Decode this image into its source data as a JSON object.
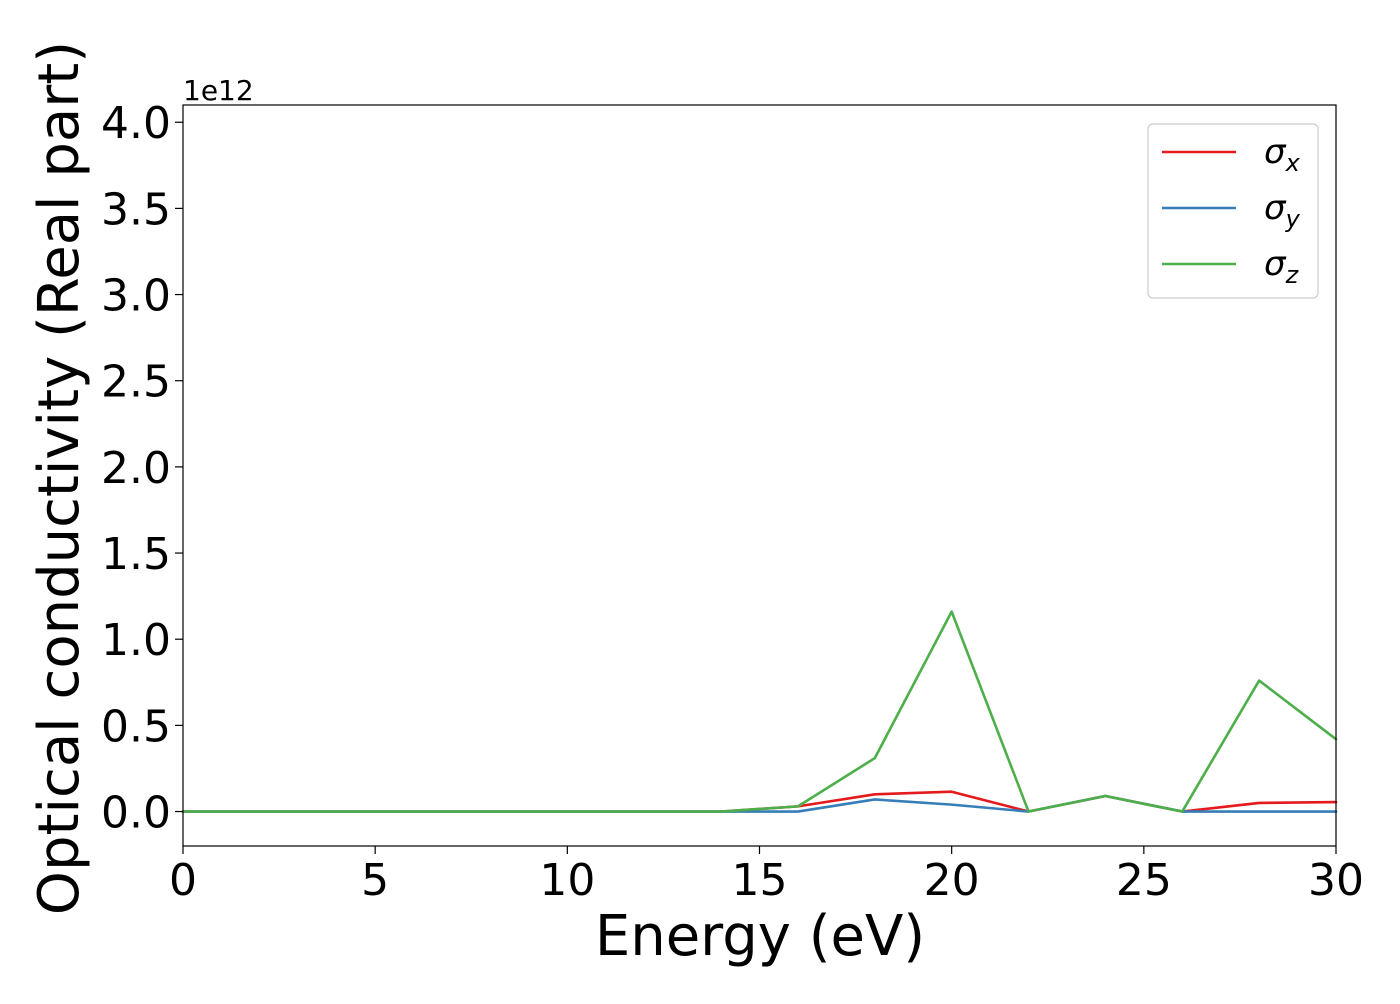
{
  "chart_data": {
    "type": "line",
    "xlabel": "Energy (eV)",
    "ylabel": "Optical conductivity (Real part)",
    "y_multiplier_label": "1e12",
    "xlim": [
      0,
      30
    ],
    "ylim": [
      -0.2,
      4.1
    ],
    "y_units_scale": 1000000000000.0,
    "xticks": [
      0,
      5,
      10,
      15,
      20,
      25,
      30
    ],
    "xtick_labels": [
      "0",
      "5",
      "10",
      "15",
      "20",
      "25",
      "30"
    ],
    "yticks": [
      0.0,
      0.5,
      1.0,
      1.5,
      2.0,
      2.5,
      3.0,
      3.5,
      4.0
    ],
    "ytick_labels": [
      "0.0",
      "0.5",
      "1.0",
      "1.5",
      "2.0",
      "2.5",
      "3.0",
      "3.5",
      "4.0"
    ],
    "grid": false,
    "legend_placement": "top-right",
    "x": [
      0,
      2,
      4,
      6,
      8,
      10,
      12,
      14,
      16,
      18,
      20,
      22,
      24,
      26,
      28,
      30
    ],
    "series": [
      {
        "name": "σx",
        "symbol": "σ",
        "subscript": "x",
        "color": "#e41a1c",
        "values": [
          0,
          0,
          0,
          0,
          0,
          0,
          0,
          0,
          0.03,
          0.1,
          0.115,
          0,
          0.09,
          0,
          0.05,
          0.055
        ]
      },
      {
        "name": "σy",
        "symbol": "σ",
        "subscript": "y",
        "color": "#377eb8",
        "values": [
          0,
          0,
          0,
          0,
          0,
          0,
          0,
          0,
          0,
          0.07,
          0.04,
          0,
          0.09,
          0,
          0,
          0
        ]
      },
      {
        "name": "σz",
        "symbol": "σ",
        "subscript": "z",
        "color": "#4daf4a",
        "values": [
          0,
          0,
          0,
          0,
          0,
          0,
          0,
          0,
          0.03,
          0.31,
          1.16,
          0,
          0.09,
          0,
          0.76,
          0.42
        ]
      }
    ]
  }
}
